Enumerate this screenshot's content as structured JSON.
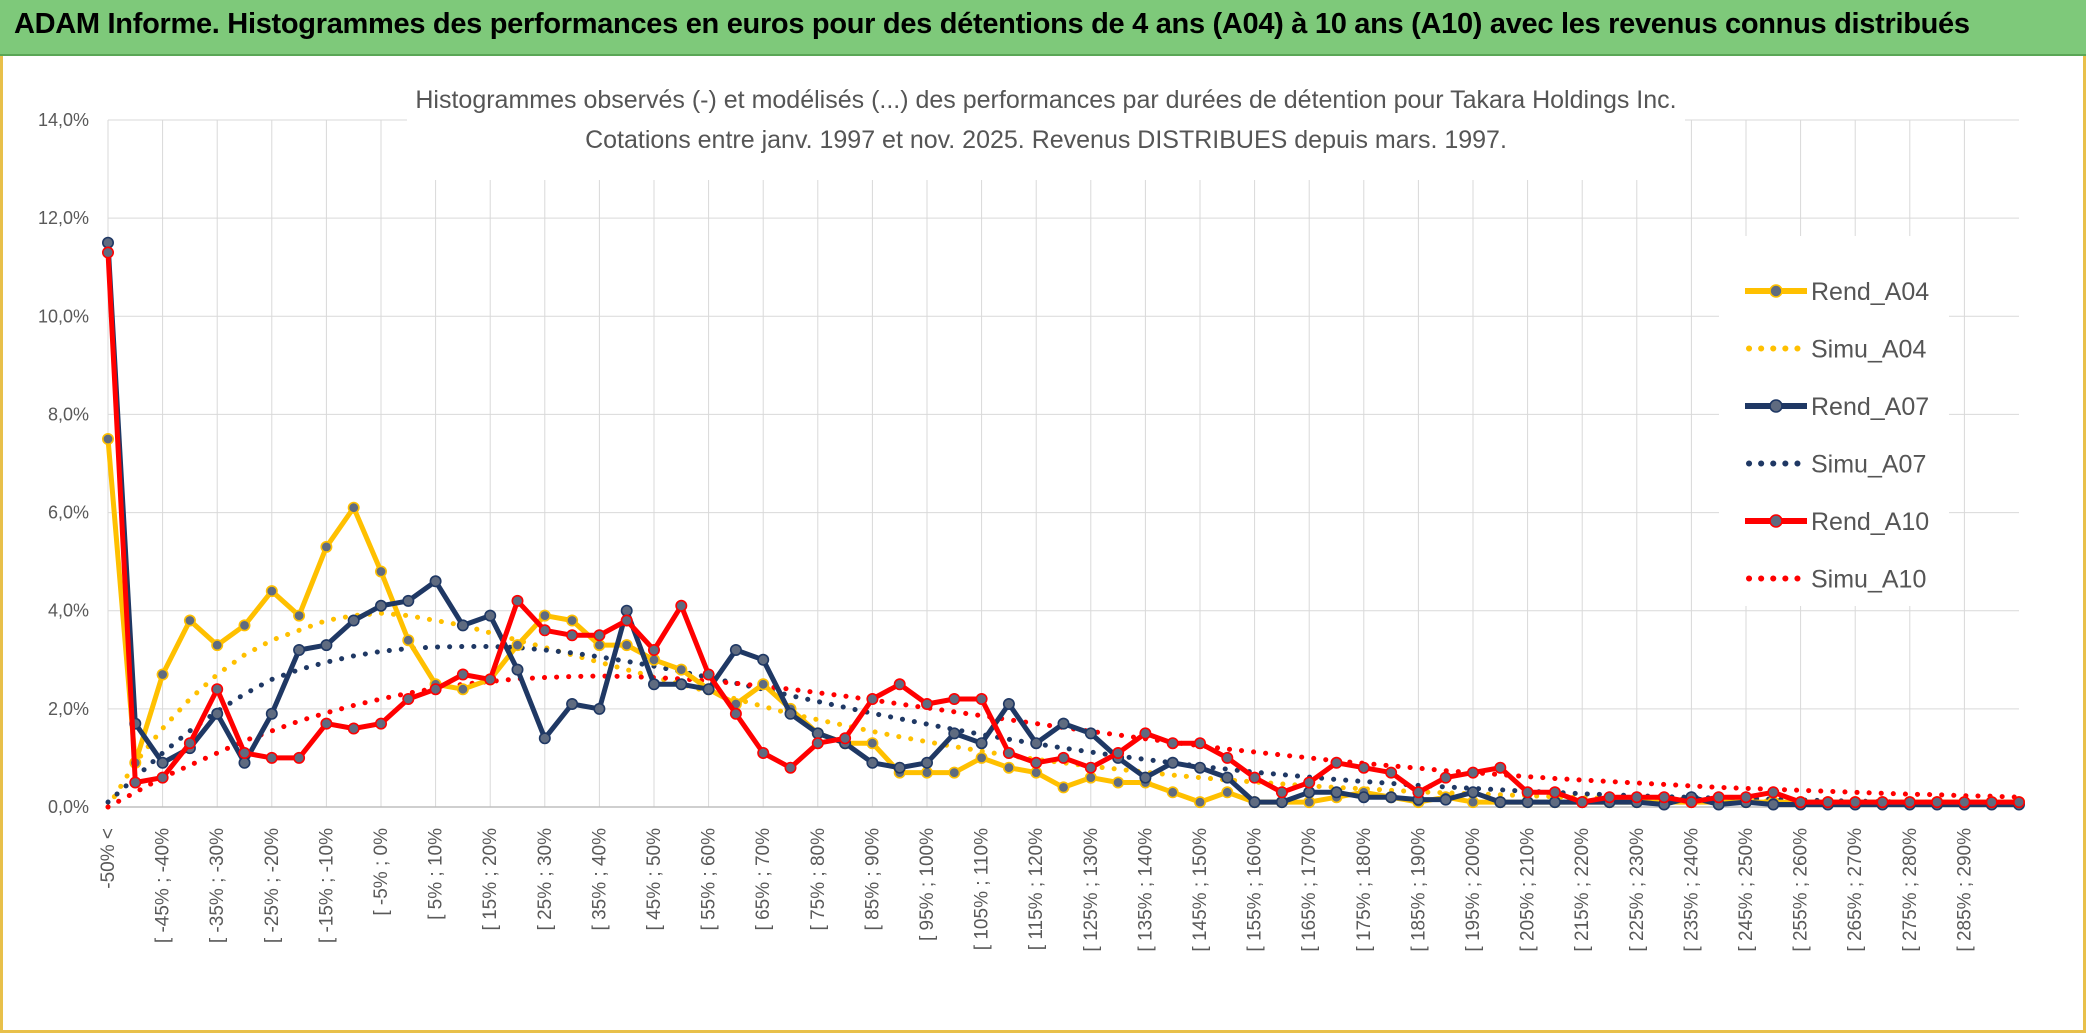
{
  "banner": {
    "title": "ADAM Informe. Histogrammes des performances en euros pour des détentions de 4 ans (A04) à 10 ans (A10) avec les revenus connus distribués",
    "color": "#7ec97a"
  },
  "chart_data": {
    "type": "line",
    "title": "Histogrammes observés (-) et modélisés (...) des performances par durées de détention pour Takara Holdings Inc.",
    "subtitle": "Cotations entre janv. 1997 et nov. 2025. Revenus DISTRIBUES depuis mars. 1997.",
    "ylim": [
      0,
      14
    ],
    "y_ticks": [
      "0,0%",
      "2,0%",
      "4,0%",
      "6,0%",
      "8,0%",
      "10,0%",
      "12,0%",
      "14,0%"
    ],
    "grid": true,
    "legend_position": "right",
    "x_label_rows": [
      "-50% <",
      "[ -45% ; -40%",
      "[ -35% ; -30%",
      "[ -25% ; -20%",
      "[ -15% ; -10%",
      "[ -5% ; 0%",
      "[ 5% ; 10%",
      "[ 15% ; 20%",
      "[ 25% ; 30%",
      "[ 35% ; 40%",
      "[ 45% ; 50%",
      "[ 55% ; 60%",
      "[ 65% ; 70%",
      "[ 75% ; 80%",
      "[ 85% ; 90%",
      "[ 95% ; 100%",
      "[ 105% ; 110%",
      "[ 115% ; 120%",
      "[ 125% ; 130%",
      "[ 135% ; 140%",
      "[ 145% ; 150%",
      "[ 155% ; 160%",
      "[ 165% ; 170%",
      "[ 175% ; 180%",
      "[ 185% ; 190%",
      "[ 195% ; 200%",
      "[ 205% ; 210%",
      "[ 215% ; 220%",
      "[ 225% ; 230%",
      "[ 235% ; 240%",
      "[ 245% ; 250%",
      "[ 255% ; 260%",
      "[ 265% ; 270%",
      "[ 275% ; 280%",
      "[ 285% ; 290%"
    ],
    "series": [
      {
        "name": "Rend_A04",
        "color": "#ffc000",
        "style": "solid",
        "markers": true,
        "values": [
          7.5,
          0.9,
          2.7,
          3.8,
          3.3,
          3.7,
          4.4,
          3.9,
          5.3,
          6.1,
          4.8,
          3.4,
          2.5,
          2.4,
          2.6,
          3.3,
          3.9,
          3.8,
          3.3,
          3.3,
          3.0,
          2.8,
          2.4,
          2.1,
          2.5,
          2.0,
          1.5,
          1.3,
          1.3,
          0.7,
          0.7,
          0.7,
          1.0,
          0.8,
          0.7,
          0.4,
          0.6,
          0.5,
          0.5,
          0.3,
          0.1,
          0.3,
          0.1,
          0.1,
          0.1,
          0.2,
          0.3,
          0.2,
          0.1,
          0.2,
          0.1,
          0.1,
          0.1,
          0.1,
          0.1,
          0.1,
          0.1,
          0.1,
          0.1,
          0.1,
          0.1,
          0.1,
          0.1,
          0.1,
          0.1,
          0.1,
          0.1,
          0.1,
          0.1,
          0.1,
          0.1
        ]
      },
      {
        "name": "Simu_A04",
        "color": "#ffc000",
        "style": "dotted",
        "values": [
          0.0,
          0.9,
          1.6,
          2.2,
          2.7,
          3.1,
          3.4,
          3.6,
          3.8,
          3.9,
          3.95,
          3.9,
          3.8,
          3.7,
          3.55,
          3.4,
          3.25,
          3.1,
          2.95,
          2.8,
          2.65,
          2.5,
          2.35,
          2.2,
          2.05,
          1.9,
          1.78,
          1.66,
          1.54,
          1.43,
          1.33,
          1.23,
          1.14,
          1.05,
          0.97,
          0.9,
          0.83,
          0.77,
          0.71,
          0.65,
          0.6,
          0.55,
          0.51,
          0.47,
          0.43,
          0.4,
          0.37,
          0.34,
          0.31,
          0.29,
          0.27,
          0.25,
          0.23,
          0.21,
          0.19,
          0.18,
          0.17,
          0.16,
          0.15,
          0.14,
          0.13,
          0.12,
          0.11,
          0.1,
          0.1,
          0.09,
          0.09,
          0.08,
          0.08,
          0.07,
          0.07
        ]
      },
      {
        "name": "Rend_A07",
        "color": "#1f3864",
        "style": "solid",
        "markers": true,
        "values": [
          11.5,
          1.7,
          0.9,
          1.2,
          1.9,
          0.9,
          1.9,
          3.2,
          3.3,
          3.8,
          4.1,
          4.2,
          4.6,
          3.7,
          3.9,
          2.8,
          1.4,
          2.1,
          2.0,
          4.0,
          2.5,
          2.5,
          2.4,
          3.2,
          3.0,
          1.9,
          1.5,
          1.3,
          0.9,
          0.8,
          0.9,
          1.5,
          1.3,
          2.1,
          1.3,
          1.7,
          1.5,
          1.0,
          0.6,
          0.9,
          0.8,
          0.6,
          0.1,
          0.1,
          0.3,
          0.3,
          0.2,
          0.2,
          0.15,
          0.15,
          0.3,
          0.1,
          0.1,
          0.1,
          0.1,
          0.1,
          0.1,
          0.05,
          0.2,
          0.05,
          0.1,
          0.05,
          0.05,
          0.05,
          0.05,
          0.05,
          0.05,
          0.05,
          0.05,
          0.05,
          0.05
        ]
      },
      {
        "name": "Simu_A07",
        "color": "#1f3864",
        "style": "dotted",
        "values": [
          0.1,
          0.6,
          1.1,
          1.55,
          1.95,
          2.3,
          2.6,
          2.8,
          2.95,
          3.08,
          3.17,
          3.23,
          3.26,
          3.27,
          3.27,
          3.25,
          3.2,
          3.14,
          3.06,
          2.97,
          2.87,
          2.76,
          2.64,
          2.52,
          2.4,
          2.27,
          2.15,
          2.03,
          1.91,
          1.8,
          1.69,
          1.58,
          1.48,
          1.38,
          1.29,
          1.2,
          1.12,
          1.04,
          0.97,
          0.9,
          0.83,
          0.77,
          0.71,
          0.66,
          0.61,
          0.56,
          0.52,
          0.48,
          0.44,
          0.41,
          0.38,
          0.35,
          0.32,
          0.3,
          0.27,
          0.25,
          0.23,
          0.21,
          0.2,
          0.18,
          0.17,
          0.16,
          0.14,
          0.13,
          0.12,
          0.11,
          0.1,
          0.1,
          0.09,
          0.08,
          0.08
        ]
      },
      {
        "name": "Rend_A10",
        "color": "#ff0000",
        "style": "solid",
        "markers": true,
        "values": [
          11.3,
          0.5,
          0.6,
          1.3,
          2.4,
          1.1,
          1.0,
          1.0,
          1.7,
          1.6,
          1.7,
          2.2,
          2.4,
          2.7,
          2.6,
          4.2,
          3.6,
          3.5,
          3.5,
          3.8,
          3.2,
          4.1,
          2.7,
          1.9,
          1.1,
          0.8,
          1.3,
          1.4,
          2.2,
          2.5,
          2.1,
          2.2,
          2.2,
          1.1,
          0.9,
          1.0,
          0.8,
          1.1,
          1.5,
          1.3,
          1.3,
          1.0,
          0.6,
          0.3,
          0.5,
          0.9,
          0.8,
          0.7,
          0.3,
          0.6,
          0.7,
          0.8,
          0.3,
          0.3,
          0.1,
          0.2,
          0.2,
          0.2,
          0.1,
          0.2,
          0.2,
          0.3,
          0.1,
          0.1,
          0.1,
          0.1,
          0.1,
          0.1,
          0.1,
          0.1,
          0.1
        ]
      },
      {
        "name": "Simu_A10",
        "color": "#ff0000",
        "style": "dotted",
        "values": [
          0.0,
          0.3,
          0.6,
          0.85,
          1.1,
          1.35,
          1.55,
          1.75,
          1.92,
          2.07,
          2.2,
          2.32,
          2.42,
          2.5,
          2.56,
          2.61,
          2.64,
          2.66,
          2.67,
          2.66,
          2.64,
          2.61,
          2.57,
          2.52,
          2.46,
          2.4,
          2.33,
          2.26,
          2.18,
          2.1,
          2.02,
          1.94,
          1.86,
          1.78,
          1.7,
          1.62,
          1.54,
          1.47,
          1.39,
          1.32,
          1.25,
          1.18,
          1.12,
          1.06,
          1.0,
          0.94,
          0.89,
          0.84,
          0.79,
          0.74,
          0.7,
          0.66,
          0.62,
          0.58,
          0.55,
          0.52,
          0.49,
          0.46,
          0.43,
          0.4,
          0.38,
          0.36,
          0.34,
          0.32,
          0.3,
          0.28,
          0.26,
          0.25,
          0.23,
          0.22,
          0.2
        ]
      }
    ]
  }
}
